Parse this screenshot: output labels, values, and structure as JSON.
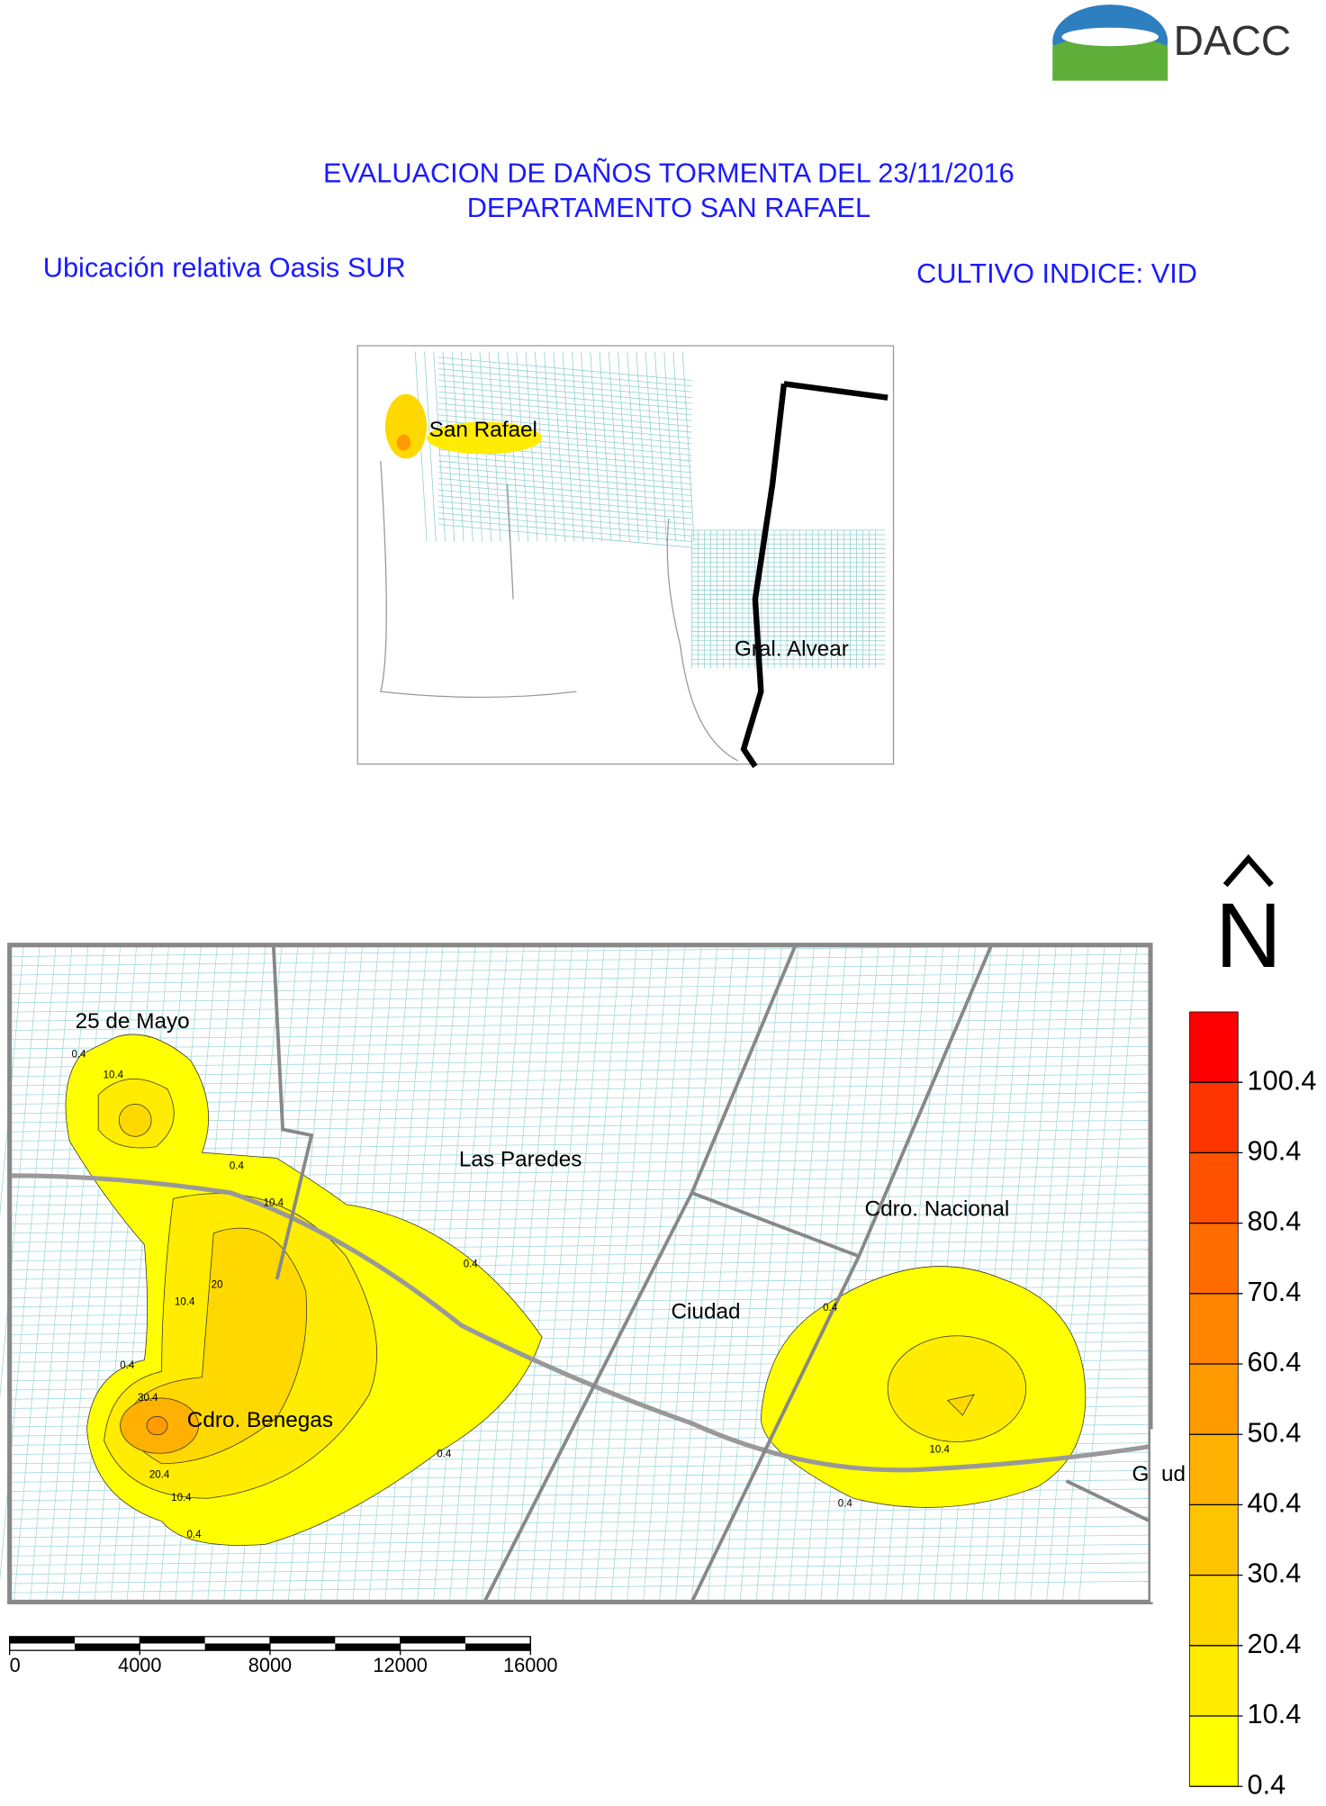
{
  "logo": "DACC",
  "title": [
    "EVALUACION DE DAÑOS TORMENTA DEL 23/11/2016",
    "DEPARTAMENTO SAN RAFAEL"
  ],
  "subtitle_left": "Ubicación relativa Oasis SUR",
  "subtitle_right": "CULTIVO INDICE: VID",
  "inset_map": {
    "labels": [
      "San Rafael",
      "Gral. Alvear"
    ]
  },
  "main_map": {
    "labels": [
      "25 de Mayo",
      "Las Paredes",
      "Cdro. Nacional",
      "Ciudad",
      "Cdro. Benegas",
      "Goud"
    ],
    "contour_labels": [
      "0.4",
      "10.4",
      "0.4",
      "10.4",
      "10.4",
      "20",
      "0.4",
      "30.4",
      "20.4",
      "10.4",
      "0.4",
      "0.4",
      "0.4",
      "0.4",
      "10.4",
      "0.4"
    ]
  },
  "scale_bar": [
    0,
    4000,
    8000,
    12000,
    16000
  ],
  "north": "N",
  "legend": {
    "levels": [
      0.4,
      10.4,
      20.4,
      30.4,
      40.4,
      50.4,
      60.4,
      70.4,
      80.4,
      90.4,
      100.4
    ],
    "colors": [
      "#ffff00",
      "#ffec00",
      "#ffd800",
      "#ffc400",
      "#ffb000",
      "#ff9a00",
      "#ff8400",
      "#ff6c00",
      "#ff5200",
      "#ff3500",
      "#ff0000"
    ]
  }
}
